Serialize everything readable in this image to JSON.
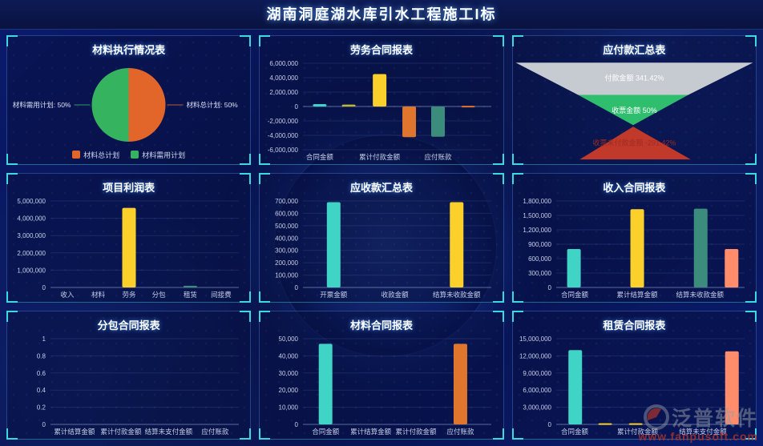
{
  "header": {
    "title": "湖南洞庭湖水库引水工程施工I标"
  },
  "watermark": {
    "brand": "泛普软件",
    "url": "www.fanpusoft.com"
  },
  "chart_data": [
    {
      "title": "材料执行情况表",
      "type": "pie",
      "slices": [
        {
          "label": "材料总计划",
          "value": 50,
          "color": "#E2662A",
          "callout": "材料总计划: 50%",
          "side": "right"
        },
        {
          "label": "材料需用计划",
          "value": 50,
          "color": "#36B35F",
          "callout": "材料需用计划: 50%",
          "side": "left"
        }
      ],
      "legend": [
        {
          "label": "材料总计划",
          "color": "#E2662A"
        },
        {
          "label": "材料需用计划",
          "color": "#36B35F"
        }
      ]
    },
    {
      "title": "劳务合同报表",
      "type": "bar",
      "ylim": [
        -6000000,
        6000000
      ],
      "yticks": [
        6000000,
        4000000,
        2000000,
        0,
        -2000000,
        -4000000,
        -6000000
      ],
      "categories": [
        "合同金额",
        "累计付款金额",
        "应付账款"
      ],
      "bars": [
        {
          "x": 0.089,
          "value": 330000,
          "color": "#3FD4C5"
        },
        {
          "x": 0.243,
          "value": 260000,
          "color": "#BDBB2B"
        },
        {
          "x": 0.407,
          "value": 4500000,
          "color": "#FBD02A"
        },
        {
          "x": 0.564,
          "value": -4250000,
          "color": "#E0752D"
        },
        {
          "x": 0.717,
          "value": -4200000,
          "color": "#3C8C7E"
        },
        {
          "x": 0.877,
          "value": 100000,
          "color": "#E0752D"
        }
      ],
      "xlabels": [
        {
          "text": "合同金额",
          "x": 0.089
        },
        {
          "text": "累计付款金额",
          "x": 0.407
        },
        {
          "text": "应付账款",
          "x": 0.717
        }
      ]
    },
    {
      "title": "应付款汇总表",
      "type": "funnel",
      "segments": [
        {
          "label": "付款金额 341.42%",
          "value": "341.42%",
          "color": "#C6CAD1",
          "labelColor": "#FFFFFF"
        },
        {
          "label": "收票金额 50%",
          "value": "50%",
          "color": "#2EBE6E",
          "labelColor": "#FFFFFF"
        },
        {
          "label": "收票未付款金额 -291.42%",
          "value": "-291.42%",
          "color": "#C0392B",
          "labelColor": "#9E2B22"
        }
      ]
    },
    {
      "title": "项目利润表",
      "type": "bar",
      "ylim": [
        0,
        5000000
      ],
      "yticks": [
        5000000,
        4000000,
        3000000,
        2000000,
        1000000,
        0
      ],
      "categories": [
        "收入",
        "材料",
        "劳务",
        "分包",
        "租赁",
        "间接费"
      ],
      "bars": [
        {
          "x": 0.417,
          "value": 4600000,
          "color": "#FBD02A"
        },
        {
          "x": 0.742,
          "value": 100000,
          "color": "#3C8C7E"
        }
      ],
      "xlabels": [
        {
          "text": "收入",
          "x": 0.089
        },
        {
          "text": "材料",
          "x": 0.253
        },
        {
          "text": "劳务",
          "x": 0.417
        },
        {
          "text": "分包",
          "x": 0.575
        },
        {
          "text": "租赁",
          "x": 0.742
        },
        {
          "text": "间接费",
          "x": 0.906
        }
      ]
    },
    {
      "title": "应收款汇总表",
      "type": "bar",
      "ylim": [
        0,
        700000
      ],
      "yticks": [
        700000,
        600000,
        500000,
        400000,
        300000,
        200000,
        100000,
        0
      ],
      "categories": [
        "开票金额",
        "收款金额",
        "结算未收款金额"
      ],
      "bars": [
        {
          "x": 0.163,
          "value": 690000,
          "color": "#3FD4C5"
        },
        {
          "x": 0.816,
          "value": 690000,
          "color": "#FBD02A"
        }
      ],
      "xlabels": [
        {
          "text": "开票金额",
          "x": 0.163
        },
        {
          "text": "收款金额",
          "x": 0.488
        },
        {
          "text": "结算未收款金额",
          "x": 0.816
        }
      ]
    },
    {
      "title": "收入合同报表",
      "type": "bar",
      "ylim": [
        0,
        1800000
      ],
      "yticks": [
        1800000,
        1500000,
        1200000,
        900000,
        600000,
        300000,
        0
      ],
      "categories": [
        "合同金额",
        "累计结算金额",
        "结算未收款金额"
      ],
      "bars": [
        {
          "x": 0.094,
          "value": 800000,
          "color": "#3FD4C5"
        },
        {
          "x": 0.43,
          "value": 1630000,
          "color": "#FBD02A"
        },
        {
          "x": 0.767,
          "value": 1640000,
          "color": "#3C8C7E"
        },
        {
          "x": 0.931,
          "value": 800000,
          "color": "#FF8C6B"
        }
      ],
      "xlabels": [
        {
          "text": "合同金额",
          "x": 0.098
        },
        {
          "text": "累计结算金额",
          "x": 0.43
        },
        {
          "text": "结算未收款金额",
          "x": 0.763
        }
      ]
    },
    {
      "title": "分包合同报表",
      "type": "bar",
      "ylim": [
        0,
        1
      ],
      "yticks": [
        1,
        0.8,
        0.6,
        0.4,
        0.2,
        0
      ],
      "categories": [
        "累计结算金额",
        "累计付款金额",
        "结算未支付金额",
        "应付账款"
      ],
      "bars": [],
      "xlabels": [
        {
          "text": "累计结算金额",
          "x": 0.127
        },
        {
          "text": "累计付款金额",
          "x": 0.374
        },
        {
          "text": "结算未支付金额",
          "x": 0.627
        },
        {
          "text": "应付账款",
          "x": 0.874
        }
      ]
    },
    {
      "title": "材料合同报表",
      "type": "bar",
      "ylim": [
        0,
        50000
      ],
      "yticks": [
        50000,
        40000,
        30000,
        20000,
        10000,
        0
      ],
      "categories": [
        "合同金额",
        "累计结算金额",
        "累计付款金额",
        "应付账款"
      ],
      "bars": [
        {
          "x": 0.12,
          "value": 47000,
          "color": "#3FD4C5"
        },
        {
          "x": 0.836,
          "value": 47000,
          "color": "#E0752D"
        }
      ],
      "xlabels": [
        {
          "text": "合同金额",
          "x": 0.12
        },
        {
          "text": "累计结算金额",
          "x": 0.36
        },
        {
          "text": "累计付款金额",
          "x": 0.6
        },
        {
          "text": "应付账款",
          "x": 0.836
        }
      ]
    },
    {
      "title": "租赁合同报表",
      "type": "bar",
      "ylim": [
        0,
        15000000
      ],
      "yticks": [
        15000000,
        12000000,
        9000000,
        6000000,
        3000000,
        0
      ],
      "categories": [
        "合同金额",
        "累计付款金额",
        "结算未支付金额"
      ],
      "bars": [
        {
          "x": 0.101,
          "value": 13000000,
          "color": "#3FD4C5"
        },
        {
          "x": 0.26,
          "value": 200000,
          "color": "#FBD02A"
        },
        {
          "x": 0.422,
          "value": 200000,
          "color": "#FBD02A"
        },
        {
          "x": 0.933,
          "value": 12800000,
          "color": "#FF8C6B"
        }
      ],
      "xlabels": [
        {
          "text": "合同金额",
          "x": 0.098
        },
        {
          "text": "累计付款金额",
          "x": 0.432
        },
        {
          "text": "结算未支付金额",
          "x": 0.779
        }
      ]
    }
  ]
}
